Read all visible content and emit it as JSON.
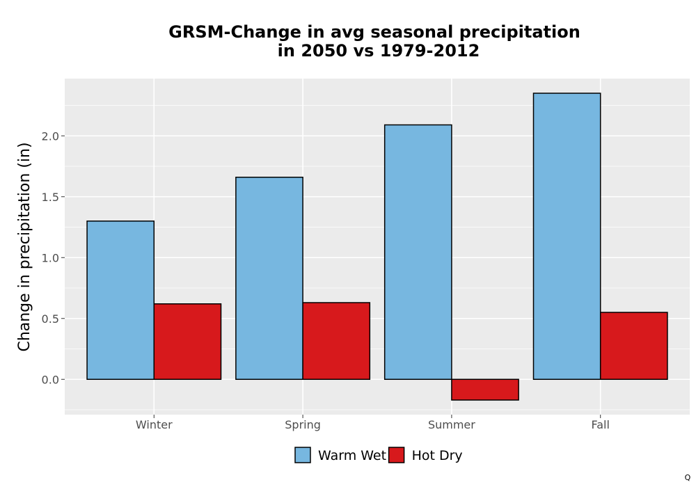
{
  "chart_data": {
    "type": "bar",
    "title_lines": [
      "GRSM-Change in avg seasonal precipitation",
      "in 2050 vs 1979-2012"
    ],
    "xlabel": "",
    "ylabel": "Change in precipitation (in)",
    "categories": [
      "Winter",
      "Spring",
      "Summer",
      "Fall"
    ],
    "series": [
      {
        "name": "Warm Wet",
        "color": "#77b7e0",
        "values": [
          1.3,
          1.66,
          2.09,
          2.35
        ]
      },
      {
        "name": "Hot Dry",
        "color": "#d7191c",
        "values": [
          0.62,
          0.63,
          -0.17,
          0.55
        ]
      }
    ],
    "ylim": [
      -0.29,
      2.47
    ],
    "yticks": [
      0.0,
      0.5,
      1.0,
      1.5,
      2.0
    ],
    "ytick_labels": [
      "0.0",
      "0.5",
      "1.0",
      "1.5",
      "2.0"
    ],
    "grid": true,
    "legend_position": "bottom",
    "panel_color": "#ebebeb",
    "bar_outline_color": "#000000",
    "corner_mark": "Q"
  }
}
